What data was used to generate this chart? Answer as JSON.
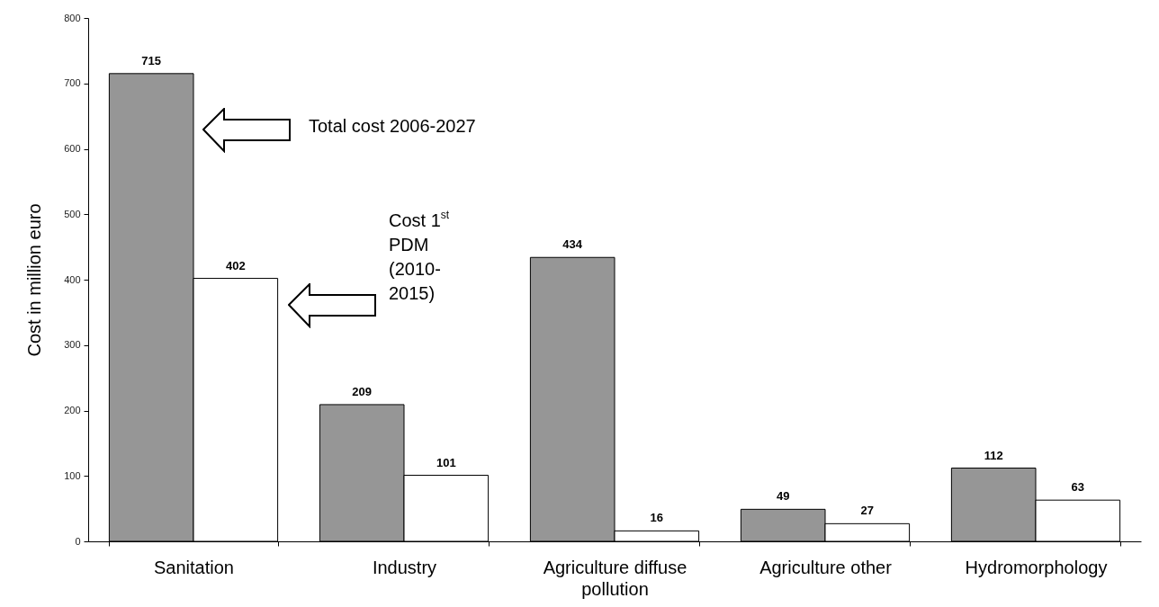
{
  "chart_data": {
    "type": "bar",
    "ylabel": "Cost in million euro",
    "categories": [
      "Sanitation",
      "Industry",
      "Agriculture diffuse pollution",
      "Agriculture other",
      "Hydromorphology"
    ],
    "series": [
      {
        "name": "Total cost 2006-2027",
        "color": "#969696",
        "values": [
          715,
          209,
          434,
          49,
          112
        ]
      },
      {
        "name": "Cost 1$^{st}$ PDM (2010-2015)",
        "color": "#ffffff",
        "values": [
          402,
          101,
          16,
          27,
          63
        ]
      }
    ],
    "ylim": [
      0,
      800
    ],
    "yticks": [
      0,
      100,
      200,
      300,
      400,
      500,
      600,
      700,
      800
    ],
    "data_labels": true,
    "grid": false,
    "legend": "top left"
  }
}
